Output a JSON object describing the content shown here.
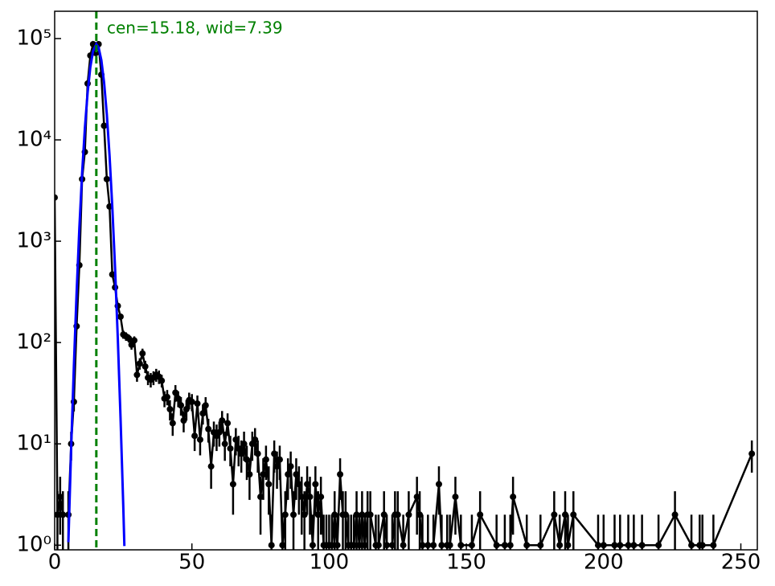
{
  "chart_data": {
    "type": "errorbar",
    "annotation": "cen=15.18, wid=7.39",
    "vline": {
      "value": 15.18,
      "color": "#008000"
    },
    "xlim": [
      0,
      256
    ],
    "ylim": [
      0.9,
      186000
    ],
    "log_y": true,
    "xticks": [
      0,
      50,
      100,
      150,
      200,
      250
    ],
    "yticks": [
      {
        "value": 1,
        "label": "10⁰"
      },
      {
        "value": 10,
        "label": "10¹"
      },
      {
        "value": 100,
        "label": "10²"
      },
      {
        "value": 1000,
        "label": "10³"
      },
      {
        "value": 10000,
        "label": "10⁴"
      },
      {
        "value": 100000,
        "label": "10⁵"
      }
    ],
    "series": [
      {
        "color": "#000000",
        "x": [
          0,
          1,
          2,
          3,
          5,
          6,
          7,
          8,
          9,
          10,
          11,
          12,
          13,
          14,
          15,
          16,
          17,
          18,
          19,
          20,
          21,
          22,
          23,
          24,
          25,
          26,
          27,
          28,
          29,
          30,
          31,
          32,
          33,
          34,
          35,
          36,
          37,
          38,
          39,
          40,
          41,
          42,
          43,
          44,
          45,
          46,
          47,
          48,
          49,
          50,
          51,
          52,
          53,
          54,
          55,
          56,
          57,
          58,
          59,
          60,
          61,
          62,
          63,
          64,
          65,
          66,
          67,
          68,
          69,
          70,
          71,
          72,
          73,
          74,
          75,
          76,
          77,
          78,
          79,
          80,
          81,
          82,
          83,
          84,
          85,
          86,
          87,
          88,
          89,
          90,
          91,
          92,
          93,
          94,
          95,
          96,
          97,
          98,
          99,
          100,
          101,
          102,
          103,
          104,
          105,
          106,
          107,
          108,
          109,
          110,
          111,
          112,
          113,
          114,
          115,
          117,
          118,
          120,
          121,
          123,
          124,
          125,
          127,
          129,
          132,
          133,
          134,
          136,
          138,
          140,
          141,
          143,
          144,
          146,
          148,
          152,
          155,
          161,
          164,
          166,
          167,
          172,
          177,
          182,
          184,
          186,
          187,
          189,
          198,
          200,
          204,
          206,
          209,
          211,
          214,
          220,
          226,
          232,
          235,
          236,
          240,
          254
        ],
        "values": [
          2700,
          2,
          3,
          2,
          2,
          10,
          26,
          145,
          580,
          4100,
          7600,
          36000,
          68000,
          88000,
          72000,
          88000,
          44000,
          13800,
          4100,
          2200,
          470,
          350,
          230,
          180,
          120,
          115,
          110,
          95,
          105,
          48,
          62,
          78,
          58,
          45,
          43,
          45,
          48,
          46,
          42,
          28,
          29,
          22,
          16,
          32,
          28,
          24,
          17,
          22,
          27,
          26,
          12,
          25,
          11,
          20,
          24,
          14,
          6,
          13,
          12,
          13,
          17,
          10,
          16,
          9,
          4,
          11,
          9,
          8,
          10,
          7,
          5,
          10,
          11,
          8,
          3,
          5,
          7,
          4,
          1,
          8,
          6,
          7,
          1,
          2,
          5,
          6,
          2,
          5,
          4,
          3,
          2,
          4,
          3,
          1,
          4,
          2,
          3,
          1,
          1,
          1,
          1,
          2,
          1,
          5,
          2,
          2,
          1,
          1,
          1,
          2,
          1,
          2,
          1,
          2,
          2,
          1,
          1,
          2,
          1,
          1,
          2,
          2,
          1,
          2,
          3,
          2,
          1,
          1,
          1,
          4,
          1,
          1,
          1,
          3,
          1,
          1,
          2,
          1,
          1,
          1,
          3,
          1,
          1,
          2,
          1,
          2,
          1,
          2,
          1,
          1,
          1,
          1,
          1,
          1,
          1,
          1,
          2,
          1,
          1,
          1,
          1,
          8
        ],
        "errors": [
          52,
          1.41,
          1.73,
          1.41,
          1.41,
          3.16,
          5.1,
          12,
          24,
          64,
          87,
          190,
          261,
          297,
          268,
          297,
          210,
          117,
          64,
          47,
          22,
          19,
          15,
          13,
          11,
          11,
          10,
          10,
          10,
          7,
          8,
          9,
          8,
          7,
          7,
          7,
          7,
          7,
          6,
          5,
          5,
          5,
          4,
          6,
          5,
          5,
          4,
          5,
          5,
          5,
          3.5,
          5,
          3.3,
          4.5,
          4.9,
          3.7,
          2.4,
          3.6,
          3.5,
          3.6,
          4.1,
          3.2,
          4,
          3,
          2,
          3.3,
          3,
          2.8,
          3.2,
          2.6,
          2.2,
          3.2,
          3.3,
          2.8,
          1.73,
          2.2,
          2.6,
          2,
          1,
          2.8,
          2.4,
          2.6,
          1,
          1.41,
          2.2,
          2.4,
          1.41,
          2.2,
          2,
          1.73,
          1.41,
          2,
          1.73,
          1,
          2,
          1.41,
          1.73,
          1,
          1,
          1,
          1,
          1.41,
          1,
          2.2,
          1.41,
          1.41,
          1,
          1,
          1,
          1.41,
          1,
          1.41,
          1,
          1.41,
          1.41,
          1,
          1,
          1.41,
          1,
          1,
          1.41,
          1.41,
          1,
          1.41,
          1.73,
          1.41,
          1,
          1,
          1,
          2,
          1,
          1,
          1,
          1.73,
          1,
          1,
          1.41,
          1,
          1,
          1,
          1.73,
          1,
          1,
          1.41,
          1,
          1.41,
          1,
          1.41,
          1,
          1,
          1,
          1,
          1,
          1,
          1,
          1,
          1.41,
          1,
          1,
          1,
          1,
          2.8
        ]
      },
      {
        "color": "#0000ff",
        "x": [
          5,
          6,
          7,
          8,
          9,
          10,
          11,
          12,
          13,
          14,
          15.18,
          16,
          17,
          18,
          19,
          20,
          21,
          22,
          23,
          24,
          25,
          25.4
        ],
        "values": [
          1.07,
          8.9,
          59,
          315,
          1360,
          4700,
          13000,
          29200,
          52400,
          75600,
          88000,
          81800,
          61300,
          36900,
          17900,
          6950,
          2170,
          546,
          110,
          18,
          2.4,
          0.98
        ]
      }
    ]
  }
}
